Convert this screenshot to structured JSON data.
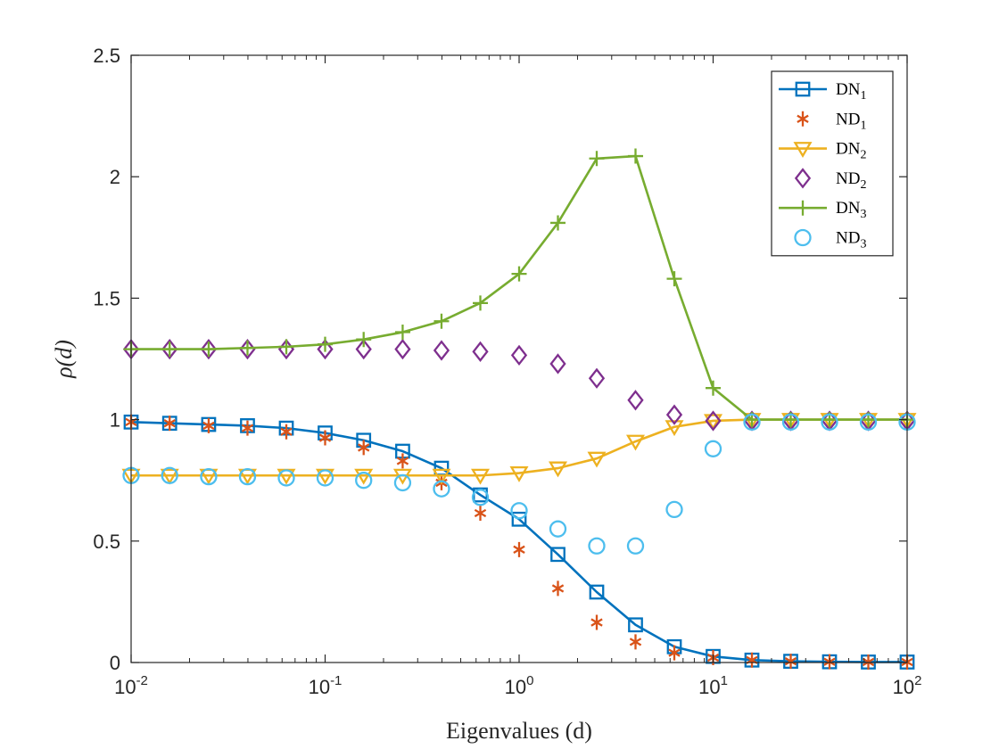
{
  "chart_data": {
    "type": "line",
    "title": "",
    "xlabel": "Eigenvalues (d)",
    "ylabel": "ρ(d)",
    "xscale": "log",
    "xlim": [
      0.01,
      100
    ],
    "ylim": [
      0,
      2.5
    ],
    "x_ticks": [
      {
        "value": 0.01,
        "base": "10",
        "exp": "-2"
      },
      {
        "value": 0.1,
        "base": "10",
        "exp": "-1"
      },
      {
        "value": 1,
        "base": "10",
        "exp": "0"
      },
      {
        "value": 10,
        "base": "10",
        "exp": "1"
      },
      {
        "value": 100,
        "base": "10",
        "exp": "2"
      }
    ],
    "y_ticks": [
      {
        "value": 0,
        "label": "0"
      },
      {
        "value": 0.5,
        "label": "0.5"
      },
      {
        "value": 1,
        "label": "1"
      },
      {
        "value": 1.5,
        "label": "1.5"
      },
      {
        "value": 2,
        "label": "2"
      },
      {
        "value": 2.5,
        "label": "2.5"
      }
    ],
    "legend_position": "top-right",
    "x": [
      0.01,
      0.0158,
      0.0251,
      0.0398,
      0.0631,
      0.1,
      0.158,
      0.251,
      0.398,
      0.631,
      1,
      1.585,
      2.512,
      3.981,
      6.31,
      10,
      15.85,
      25.12,
      39.81,
      63.1,
      100
    ],
    "series": [
      {
        "name": "DN",
        "sub": "1",
        "color": "#0072BD",
        "marker": "square",
        "line": true,
        "values": [
          0.99,
          0.985,
          0.98,
          0.975,
          0.965,
          0.945,
          0.915,
          0.87,
          0.8,
          0.69,
          0.59,
          0.445,
          0.29,
          0.155,
          0.065,
          0.025,
          0.01,
          0.005,
          0.003,
          0.002,
          0.002
        ]
      },
      {
        "name": "ND",
        "sub": "1",
        "color": "#D95319",
        "marker": "asterisk",
        "line": false,
        "values": [
          0.99,
          0.985,
          0.975,
          0.965,
          0.95,
          0.925,
          0.885,
          0.83,
          0.74,
          0.615,
          0.465,
          0.305,
          0.165,
          0.085,
          0.04,
          0.02,
          0.01,
          0.005,
          0.003,
          0.002,
          0.002
        ]
      },
      {
        "name": "DN",
        "sub": "2",
        "color": "#EDB120",
        "marker": "triangle-down",
        "line": true,
        "values": [
          0.77,
          0.77,
          0.77,
          0.77,
          0.77,
          0.77,
          0.77,
          0.77,
          0.77,
          0.77,
          0.78,
          0.8,
          0.84,
          0.91,
          0.97,
          0.995,
          1.0,
          1.0,
          1.0,
          1.0,
          1.0
        ]
      },
      {
        "name": "ND",
        "sub": "2",
        "color": "#7E2F8E",
        "marker": "diamond",
        "line": false,
        "values": [
          1.29,
          1.29,
          1.29,
          1.29,
          1.29,
          1.29,
          1.29,
          1.29,
          1.285,
          1.28,
          1.265,
          1.23,
          1.17,
          1.08,
          1.02,
          0.995,
          0.995,
          0.995,
          0.995,
          0.995,
          0.995
        ]
      },
      {
        "name": "DN",
        "sub": "3",
        "color": "#77AC30",
        "marker": "plus",
        "line": true,
        "values": [
          1.29,
          1.29,
          1.29,
          1.295,
          1.3,
          1.31,
          1.33,
          1.36,
          1.405,
          1.48,
          1.6,
          1.81,
          2.075,
          2.085,
          1.58,
          1.13,
          1.0,
          1.0,
          1.0,
          1.0,
          1.0
        ]
      },
      {
        "name": "ND",
        "sub": "3",
        "color": "#4DBEEE",
        "marker": "circle",
        "line": false,
        "values": [
          0.77,
          0.77,
          0.765,
          0.765,
          0.76,
          0.76,
          0.75,
          0.74,
          0.715,
          0.68,
          0.625,
          0.55,
          0.48,
          0.48,
          0.63,
          0.88,
          0.99,
          0.99,
          0.99,
          0.99,
          0.99
        ]
      }
    ]
  }
}
